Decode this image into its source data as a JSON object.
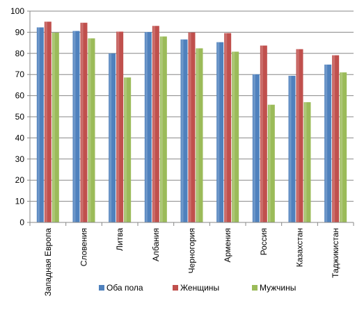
{
  "chart_data": {
    "type": "bar",
    "categories": [
      "Западная Европа",
      "Словения",
      "Литва",
      "Албания",
      "Черногория",
      "Армения",
      "Россия",
      "Казахстан",
      "Таджикистан"
    ],
    "series": [
      {
        "name": "Оба пола",
        "color": "#4F81BD",
        "values": [
          92.3,
          90.6,
          80.0,
          90.1,
          86.6,
          85.3,
          70.1,
          69.4,
          74.7
        ]
      },
      {
        "name": "Женщины",
        "color": "#C0504D",
        "values": [
          95.0,
          94.5,
          90.3,
          93.0,
          89.9,
          89.6,
          83.7,
          82.0,
          79.1
        ]
      },
      {
        "name": "Мужчины",
        "color": "#9BBB59",
        "values": [
          89.8,
          87.1,
          68.6,
          88.0,
          82.4,
          80.8,
          55.7,
          56.9,
          71.0
        ]
      }
    ],
    "y_ticks": [
      "0",
      "10",
      "20",
      "30",
      "40",
      "50",
      "60",
      "70",
      "80",
      "90",
      "100"
    ],
    "ylim": [
      0,
      100
    ],
    "grid": true,
    "legend_position": "bottom",
    "title": "",
    "xlabel": "",
    "ylabel": ""
  }
}
